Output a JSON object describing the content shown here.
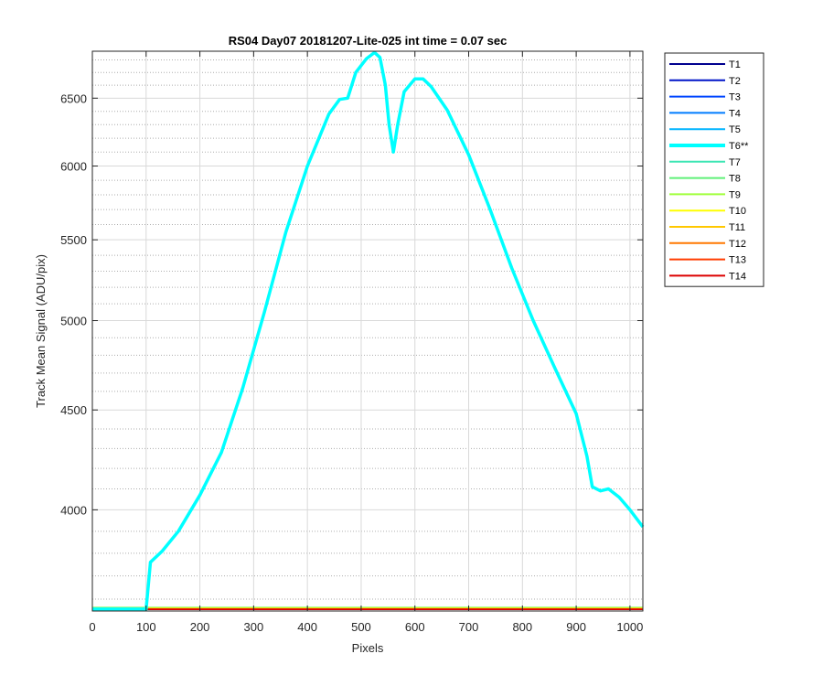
{
  "chart_data": {
    "type": "line",
    "title": "RS04 Day07 20181207-Lite-025 int time = 0.07 sec",
    "xlabel": "Pixels",
    "ylabel": "Track Mean Signal (ADU/pix)",
    "xlim": [
      0,
      1024
    ],
    "ylim": [
      3550,
      6870
    ],
    "y_scale": "log",
    "grid": true,
    "legend_position": "outside-right",
    "xticks": [
      0,
      100,
      200,
      300,
      400,
      500,
      600,
      700,
      800,
      900,
      1000
    ],
    "yticks": [
      4000,
      4500,
      5000,
      5500,
      6000,
      6500
    ],
    "series": [
      {
        "name": "T1",
        "color": "#00008f",
        "x": [
          0,
          1024
        ],
        "y": [
          3558,
          3558
        ]
      },
      {
        "name": "T2",
        "color": "#0014c8",
        "x": [
          0,
          1024
        ],
        "y": [
          3559,
          3559
        ]
      },
      {
        "name": "T3",
        "color": "#0046ff",
        "x": [
          0,
          1024
        ],
        "y": [
          3560,
          3560
        ]
      },
      {
        "name": "T4",
        "color": "#007cff",
        "x": [
          0,
          1024
        ],
        "y": [
          3561,
          3561
        ]
      },
      {
        "name": "T5",
        "color": "#00b4ff",
        "x": [
          0,
          1024
        ],
        "y": [
          3562,
          3562
        ]
      },
      {
        "name": "T6**",
        "color": "#00ffff",
        "highlight": true,
        "x": [
          0,
          100,
          108,
          130,
          160,
          200,
          240,
          280,
          320,
          360,
          400,
          440,
          460,
          475,
          490,
          510,
          525,
          535,
          545,
          552,
          560,
          568,
          580,
          600,
          615,
          630,
          660,
          700,
          740,
          780,
          820,
          860,
          900,
          920,
          930,
          945,
          960,
          980,
          1000,
          1024
        ],
        "y": [
          3558,
          3558,
          3760,
          3810,
          3900,
          4070,
          4280,
          4620,
          5050,
          5550,
          6000,
          6380,
          6490,
          6500,
          6700,
          6810,
          6860,
          6820,
          6600,
          6300,
          6100,
          6300,
          6550,
          6650,
          6650,
          6590,
          6410,
          6080,
          5700,
          5320,
          5000,
          4730,
          4480,
          4260,
          4110,
          4090,
          4100,
          4060,
          4000,
          3920
        ]
      },
      {
        "name": "T7",
        "color": "#3ce6b4",
        "x": [
          0,
          1024
        ],
        "y": [
          3563,
          3563
        ]
      },
      {
        "name": "T8",
        "color": "#5ff078",
        "x": [
          0,
          1024
        ],
        "y": [
          3565,
          3565
        ]
      },
      {
        "name": "T9",
        "color": "#a0ff3c",
        "x": [
          0,
          1024
        ],
        "y": [
          3564,
          3564
        ]
      },
      {
        "name": "T10",
        "color": "#ffff00",
        "x": [
          0,
          1024
        ],
        "y": [
          3561,
          3561
        ]
      },
      {
        "name": "T11",
        "color": "#ffc800",
        "x": [
          0,
          1024
        ],
        "y": [
          3560,
          3560
        ]
      },
      {
        "name": "T12",
        "color": "#ff7800",
        "x": [
          0,
          1024
        ],
        "y": [
          3559,
          3559
        ]
      },
      {
        "name": "T13",
        "color": "#ff3c00",
        "x": [
          0,
          1024
        ],
        "y": [
          3558,
          3558
        ]
      },
      {
        "name": "T14",
        "color": "#dc0000",
        "x": [
          0,
          1024
        ],
        "y": [
          3557,
          3557
        ]
      }
    ]
  }
}
